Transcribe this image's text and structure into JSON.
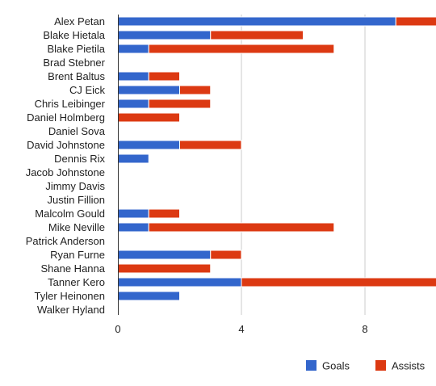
{
  "chart_data": {
    "type": "bar",
    "orientation": "horizontal",
    "stacked": true,
    "categories": [
      "Alex Petan",
      "Blake Hietala",
      "Blake Pietila",
      "Brad Stebner",
      "Brent Baltus",
      "CJ Eick",
      "Chris Leibinger",
      "Daniel Holmberg",
      "Daniel Sova",
      "David Johnstone",
      "Dennis Rix",
      "Jacob Johnstone",
      "Jimmy Davis",
      "Justin Fillion",
      "Malcolm Gould",
      "Mike Neville",
      "Patrick Anderson",
      "Ryan Furne",
      "Shane Hanna",
      "Tanner Kero",
      "Tyler Heinonen",
      "Walker Hyland"
    ],
    "series": [
      {
        "name": "Goals",
        "color": "#3366cc",
        "values": [
          9,
          3,
          1,
          0,
          1,
          2,
          1,
          0,
          0,
          2,
          1,
          0,
          0,
          0,
          1,
          1,
          0,
          3,
          0,
          4,
          2,
          0
        ]
      },
      {
        "name": "Assists",
        "color": "#dc3912",
        "values": [
          2,
          3,
          6,
          0,
          1,
          1,
          2,
          2,
          0,
          2,
          0,
          0,
          0,
          0,
          1,
          6,
          0,
          1,
          3,
          8,
          0,
          0
        ]
      }
    ],
    "xlim": [
      0,
      10.3
    ],
    "xticks": [
      0,
      4,
      8
    ],
    "grid": true,
    "legend_position": "bottom-right"
  }
}
